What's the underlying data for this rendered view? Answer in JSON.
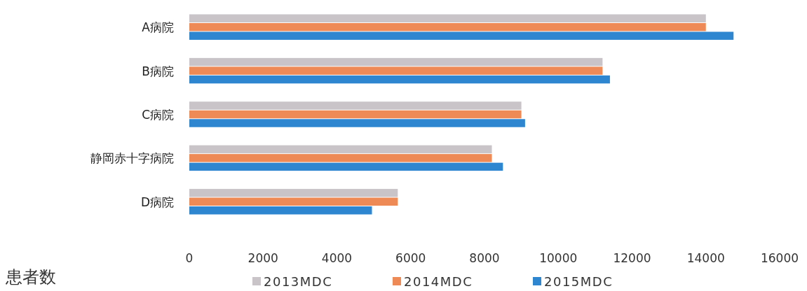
{
  "chart_data": {
    "type": "bar",
    "orientation": "horizontal",
    "xlabel": "患者数",
    "legend": "bottom",
    "categories": [
      "A病院",
      "B病院",
      "C病院",
      "静岡赤十字病院",
      "D病院"
    ],
    "series": [
      {
        "name": "2013MDC",
        "color": "#c8c4c8",
        "values": [
          14000,
          11200,
          9000,
          8200,
          5650
        ]
      },
      {
        "name": "2014MDC",
        "color": "#ee8a55",
        "values": [
          14000,
          11200,
          9000,
          8200,
          5650
        ]
      },
      {
        "name": "2015MDC",
        "color": "#2e86d0",
        "values": [
          14750,
          11400,
          9100,
          8500,
          4950
        ]
      }
    ],
    "xlim": [
      0,
      16000
    ],
    "xticks": [
      0,
      2000,
      4000,
      6000,
      8000,
      10000,
      12000,
      14000,
      16000
    ]
  }
}
